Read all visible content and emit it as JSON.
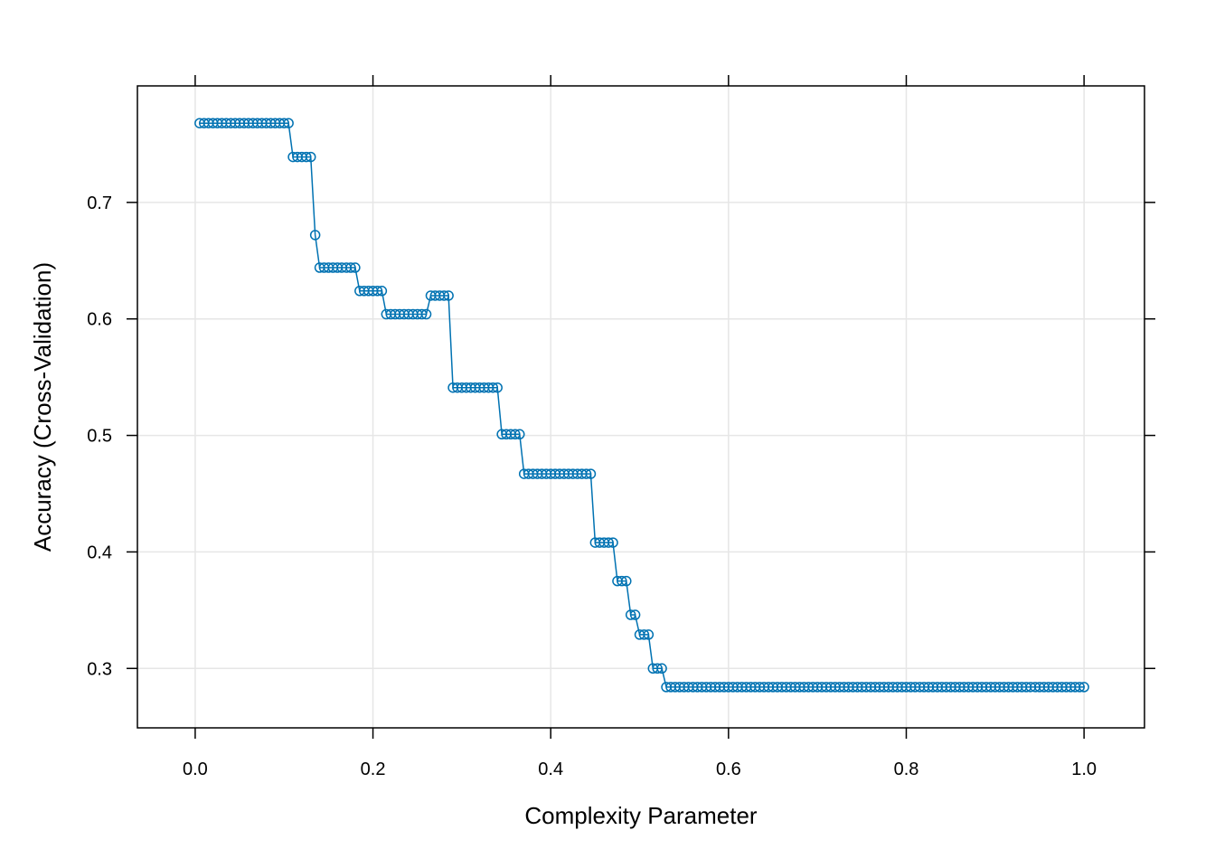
{
  "chart_data": {
    "type": "line",
    "xlabel": "Complexity Parameter",
    "ylabel": "Accuracy (Cross-Validation)",
    "xlim": [
      -0.065,
      1.068
    ],
    "ylim": [
      0.249,
      0.8
    ],
    "x_ticks": [
      0.0,
      0.2,
      0.4,
      0.6,
      0.8,
      1.0
    ],
    "x_tick_labels": [
      "0.0",
      "0.2",
      "0.4",
      "0.6",
      "0.8",
      "1.0"
    ],
    "y_ticks": [
      0.3,
      0.4,
      0.5,
      0.6,
      0.7
    ],
    "y_tick_labels": [
      "0.3",
      "0.4",
      "0.5",
      "0.6",
      "0.7"
    ],
    "grid": true,
    "color": "#0072b2",
    "series": [
      {
        "values": [
          {
            "x": 0.005,
            "y": 0.768
          },
          {
            "x": 0.01,
            "y": 0.768
          },
          {
            "x": 0.015,
            "y": 0.768
          },
          {
            "x": 0.02,
            "y": 0.768
          },
          {
            "x": 0.025,
            "y": 0.768
          },
          {
            "x": 0.03,
            "y": 0.768
          },
          {
            "x": 0.035,
            "y": 0.768
          },
          {
            "x": 0.04,
            "y": 0.768
          },
          {
            "x": 0.045,
            "y": 0.768
          },
          {
            "x": 0.05,
            "y": 0.768
          },
          {
            "x": 0.055,
            "y": 0.768
          },
          {
            "x": 0.06,
            "y": 0.768
          },
          {
            "x": 0.065,
            "y": 0.768
          },
          {
            "x": 0.07,
            "y": 0.768
          },
          {
            "x": 0.075,
            "y": 0.768
          },
          {
            "x": 0.08,
            "y": 0.768
          },
          {
            "x": 0.085,
            "y": 0.768
          },
          {
            "x": 0.09,
            "y": 0.768
          },
          {
            "x": 0.095,
            "y": 0.768
          },
          {
            "x": 0.1,
            "y": 0.768
          },
          {
            "x": 0.105,
            "y": 0.768
          },
          {
            "x": 0.11,
            "y": 0.739
          },
          {
            "x": 0.115,
            "y": 0.739
          },
          {
            "x": 0.12,
            "y": 0.739
          },
          {
            "x": 0.125,
            "y": 0.739
          },
          {
            "x": 0.13,
            "y": 0.739
          },
          {
            "x": 0.135,
            "y": 0.672
          },
          {
            "x": 0.14,
            "y": 0.644
          },
          {
            "x": 0.145,
            "y": 0.644
          },
          {
            "x": 0.15,
            "y": 0.644
          },
          {
            "x": 0.155,
            "y": 0.644
          },
          {
            "x": 0.16,
            "y": 0.644
          },
          {
            "x": 0.165,
            "y": 0.644
          },
          {
            "x": 0.17,
            "y": 0.644
          },
          {
            "x": 0.175,
            "y": 0.644
          },
          {
            "x": 0.18,
            "y": 0.644
          },
          {
            "x": 0.185,
            "y": 0.624
          },
          {
            "x": 0.19,
            "y": 0.624
          },
          {
            "x": 0.195,
            "y": 0.624
          },
          {
            "x": 0.2,
            "y": 0.624
          },
          {
            "x": 0.205,
            "y": 0.624
          },
          {
            "x": 0.21,
            "y": 0.624
          },
          {
            "x": 0.215,
            "y": 0.604
          },
          {
            "x": 0.22,
            "y": 0.604
          },
          {
            "x": 0.225,
            "y": 0.604
          },
          {
            "x": 0.23,
            "y": 0.604
          },
          {
            "x": 0.235,
            "y": 0.604
          },
          {
            "x": 0.24,
            "y": 0.604
          },
          {
            "x": 0.245,
            "y": 0.604
          },
          {
            "x": 0.25,
            "y": 0.604
          },
          {
            "x": 0.255,
            "y": 0.604
          },
          {
            "x": 0.26,
            "y": 0.604
          },
          {
            "x": 0.265,
            "y": 0.62
          },
          {
            "x": 0.27,
            "y": 0.62
          },
          {
            "x": 0.275,
            "y": 0.62
          },
          {
            "x": 0.28,
            "y": 0.62
          },
          {
            "x": 0.285,
            "y": 0.62
          },
          {
            "x": 0.29,
            "y": 0.541
          },
          {
            "x": 0.295,
            "y": 0.541
          },
          {
            "x": 0.3,
            "y": 0.541
          },
          {
            "x": 0.305,
            "y": 0.541
          },
          {
            "x": 0.31,
            "y": 0.541
          },
          {
            "x": 0.315,
            "y": 0.541
          },
          {
            "x": 0.32,
            "y": 0.541
          },
          {
            "x": 0.325,
            "y": 0.541
          },
          {
            "x": 0.33,
            "y": 0.541
          },
          {
            "x": 0.335,
            "y": 0.541
          },
          {
            "x": 0.34,
            "y": 0.541
          },
          {
            "x": 0.345,
            "y": 0.501
          },
          {
            "x": 0.35,
            "y": 0.501
          },
          {
            "x": 0.355,
            "y": 0.501
          },
          {
            "x": 0.36,
            "y": 0.501
          },
          {
            "x": 0.365,
            "y": 0.501
          },
          {
            "x": 0.37,
            "y": 0.467
          },
          {
            "x": 0.375,
            "y": 0.467
          },
          {
            "x": 0.38,
            "y": 0.467
          },
          {
            "x": 0.385,
            "y": 0.467
          },
          {
            "x": 0.39,
            "y": 0.467
          },
          {
            "x": 0.395,
            "y": 0.467
          },
          {
            "x": 0.4,
            "y": 0.467
          },
          {
            "x": 0.405,
            "y": 0.467
          },
          {
            "x": 0.41,
            "y": 0.467
          },
          {
            "x": 0.415,
            "y": 0.467
          },
          {
            "x": 0.42,
            "y": 0.467
          },
          {
            "x": 0.425,
            "y": 0.467
          },
          {
            "x": 0.43,
            "y": 0.467
          },
          {
            "x": 0.435,
            "y": 0.467
          },
          {
            "x": 0.44,
            "y": 0.467
          },
          {
            "x": 0.445,
            "y": 0.467
          },
          {
            "x": 0.45,
            "y": 0.408
          },
          {
            "x": 0.455,
            "y": 0.408
          },
          {
            "x": 0.46,
            "y": 0.408
          },
          {
            "x": 0.465,
            "y": 0.408
          },
          {
            "x": 0.47,
            "y": 0.408
          },
          {
            "x": 0.475,
            "y": 0.375
          },
          {
            "x": 0.48,
            "y": 0.375
          },
          {
            "x": 0.485,
            "y": 0.375
          },
          {
            "x": 0.49,
            "y": 0.346
          },
          {
            "x": 0.495,
            "y": 0.346
          },
          {
            "x": 0.5,
            "y": 0.329
          },
          {
            "x": 0.505,
            "y": 0.329
          },
          {
            "x": 0.51,
            "y": 0.329
          },
          {
            "x": 0.515,
            "y": 0.3
          },
          {
            "x": 0.52,
            "y": 0.3
          },
          {
            "x": 0.525,
            "y": 0.3
          },
          {
            "x": 0.53,
            "y": 0.284
          },
          {
            "x": 0.535,
            "y": 0.284
          },
          {
            "x": 0.54,
            "y": 0.284
          },
          {
            "x": 0.545,
            "y": 0.284
          },
          {
            "x": 0.55,
            "y": 0.284
          },
          {
            "x": 0.555,
            "y": 0.284
          },
          {
            "x": 0.56,
            "y": 0.284
          },
          {
            "x": 0.565,
            "y": 0.284
          },
          {
            "x": 0.57,
            "y": 0.284
          },
          {
            "x": 0.575,
            "y": 0.284
          },
          {
            "x": 0.58,
            "y": 0.284
          },
          {
            "x": 0.585,
            "y": 0.284
          },
          {
            "x": 0.59,
            "y": 0.284
          },
          {
            "x": 0.595,
            "y": 0.284
          },
          {
            "x": 0.6,
            "y": 0.284
          },
          {
            "x": 0.605,
            "y": 0.284
          },
          {
            "x": 0.61,
            "y": 0.284
          },
          {
            "x": 0.615,
            "y": 0.284
          },
          {
            "x": 0.62,
            "y": 0.284
          },
          {
            "x": 0.625,
            "y": 0.284
          },
          {
            "x": 0.63,
            "y": 0.284
          },
          {
            "x": 0.635,
            "y": 0.284
          },
          {
            "x": 0.64,
            "y": 0.284
          },
          {
            "x": 0.645,
            "y": 0.284
          },
          {
            "x": 0.65,
            "y": 0.284
          },
          {
            "x": 0.655,
            "y": 0.284
          },
          {
            "x": 0.66,
            "y": 0.284
          },
          {
            "x": 0.665,
            "y": 0.284
          },
          {
            "x": 0.67,
            "y": 0.284
          },
          {
            "x": 0.675,
            "y": 0.284
          },
          {
            "x": 0.68,
            "y": 0.284
          },
          {
            "x": 0.685,
            "y": 0.284
          },
          {
            "x": 0.69,
            "y": 0.284
          },
          {
            "x": 0.695,
            "y": 0.284
          },
          {
            "x": 0.7,
            "y": 0.284
          },
          {
            "x": 0.705,
            "y": 0.284
          },
          {
            "x": 0.71,
            "y": 0.284
          },
          {
            "x": 0.715,
            "y": 0.284
          },
          {
            "x": 0.72,
            "y": 0.284
          },
          {
            "x": 0.725,
            "y": 0.284
          },
          {
            "x": 0.73,
            "y": 0.284
          },
          {
            "x": 0.735,
            "y": 0.284
          },
          {
            "x": 0.74,
            "y": 0.284
          },
          {
            "x": 0.745,
            "y": 0.284
          },
          {
            "x": 0.75,
            "y": 0.284
          },
          {
            "x": 0.755,
            "y": 0.284
          },
          {
            "x": 0.76,
            "y": 0.284
          },
          {
            "x": 0.765,
            "y": 0.284
          },
          {
            "x": 0.77,
            "y": 0.284
          },
          {
            "x": 0.775,
            "y": 0.284
          },
          {
            "x": 0.78,
            "y": 0.284
          },
          {
            "x": 0.785,
            "y": 0.284
          },
          {
            "x": 0.79,
            "y": 0.284
          },
          {
            "x": 0.795,
            "y": 0.284
          },
          {
            "x": 0.8,
            "y": 0.284
          },
          {
            "x": 0.805,
            "y": 0.284
          },
          {
            "x": 0.81,
            "y": 0.284
          },
          {
            "x": 0.815,
            "y": 0.284
          },
          {
            "x": 0.82,
            "y": 0.284
          },
          {
            "x": 0.825,
            "y": 0.284
          },
          {
            "x": 0.83,
            "y": 0.284
          },
          {
            "x": 0.835,
            "y": 0.284
          },
          {
            "x": 0.84,
            "y": 0.284
          },
          {
            "x": 0.845,
            "y": 0.284
          },
          {
            "x": 0.85,
            "y": 0.284
          },
          {
            "x": 0.855,
            "y": 0.284
          },
          {
            "x": 0.86,
            "y": 0.284
          },
          {
            "x": 0.865,
            "y": 0.284
          },
          {
            "x": 0.87,
            "y": 0.284
          },
          {
            "x": 0.875,
            "y": 0.284
          },
          {
            "x": 0.88,
            "y": 0.284
          },
          {
            "x": 0.885,
            "y": 0.284
          },
          {
            "x": 0.89,
            "y": 0.284
          },
          {
            "x": 0.895,
            "y": 0.284
          },
          {
            "x": 0.9,
            "y": 0.284
          },
          {
            "x": 0.905,
            "y": 0.284
          },
          {
            "x": 0.91,
            "y": 0.284
          },
          {
            "x": 0.915,
            "y": 0.284
          },
          {
            "x": 0.92,
            "y": 0.284
          },
          {
            "x": 0.925,
            "y": 0.284
          },
          {
            "x": 0.93,
            "y": 0.284
          },
          {
            "x": 0.935,
            "y": 0.284
          },
          {
            "x": 0.94,
            "y": 0.284
          },
          {
            "x": 0.945,
            "y": 0.284
          },
          {
            "x": 0.95,
            "y": 0.284
          },
          {
            "x": 0.955,
            "y": 0.284
          },
          {
            "x": 0.96,
            "y": 0.284
          },
          {
            "x": 0.965,
            "y": 0.284
          },
          {
            "x": 0.97,
            "y": 0.284
          },
          {
            "x": 0.975,
            "y": 0.284
          },
          {
            "x": 0.98,
            "y": 0.284
          },
          {
            "x": 0.985,
            "y": 0.284
          },
          {
            "x": 0.99,
            "y": 0.284
          },
          {
            "x": 0.995,
            "y": 0.284
          },
          {
            "x": 1.0,
            "y": 0.284
          }
        ]
      }
    ]
  }
}
